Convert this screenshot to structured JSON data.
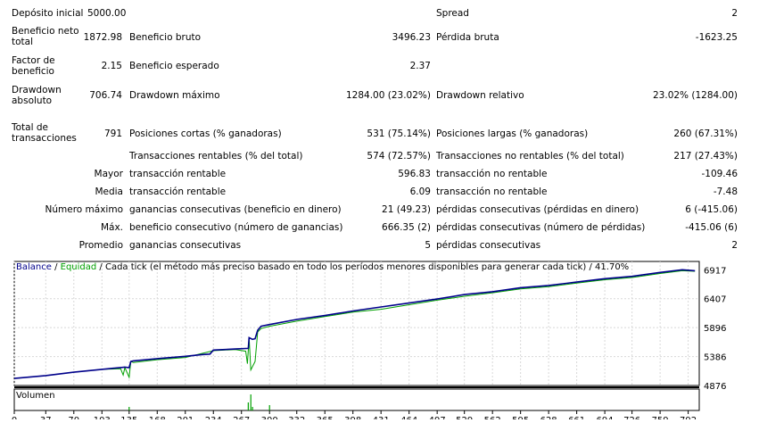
{
  "summary": {
    "initial_deposit": {
      "label": "Depósito inicial",
      "value": "5000.00"
    },
    "spread": {
      "label": "Spread",
      "value": "2"
    },
    "net_profit": {
      "label": "Beneficio neto total",
      "value": "1872.98"
    },
    "gross_profit": {
      "label": "Beneficio bruto",
      "value": "3496.23"
    },
    "gross_loss": {
      "label": "Pérdida bruta",
      "value": "-1623.25"
    },
    "profit_factor": {
      "label": "Factor de beneficio",
      "value": "2.15"
    },
    "expected_payoff": {
      "label": "Beneficio esperado",
      "value": "2.37"
    },
    "dd_abs": {
      "label": "Drawdown absoluto",
      "value": "706.74"
    },
    "dd_max": {
      "label": "Drawdown máximo",
      "value": "1284.00 (23.02%)"
    },
    "dd_rel": {
      "label": "Drawdown relativo",
      "value": "23.02% (1284.00)"
    },
    "total_trades": {
      "label": "Total de transacciones",
      "value": "791"
    },
    "short_pos": {
      "label": "Posiciones cortas (% ganadoras)",
      "value": "531 (75.14%)"
    },
    "long_pos": {
      "label": "Posiciones largas (% ganadoras)",
      "value": "260 (67.31%)"
    },
    "profit_trades": {
      "label": "Transacciones rentables (% del total)",
      "value": "574 (72.57%)"
    },
    "loss_trades": {
      "label": "Transacciones no rentables (% del total)",
      "value": "217 (27.43%)"
    }
  },
  "details": [
    {
      "prefix": "Mayor",
      "left_label": "transacción rentable",
      "left_value": "596.83",
      "right_label": "transacción no rentable",
      "right_value": "-109.46"
    },
    {
      "prefix": "Media",
      "left_label": "transacción rentable",
      "left_value": "6.09",
      "right_label": "transacción no rentable",
      "right_value": "-7.48"
    },
    {
      "prefix": "Número máximo",
      "left_label": "ganancias consecutivas (beneficio en dinero)",
      "left_value": "21 (49.23)",
      "right_label": "pérdidas consecutivas (pérdidas en dinero)",
      "right_value": "6 (-415.06)"
    },
    {
      "prefix": "Máx.",
      "left_label": "beneficio consecutivo (número de ganancias)",
      "left_value": "666.35 (2)",
      "right_label": "pérdidas consecutivas (número de pérdidas)",
      "right_value": "-415.06 (6)"
    },
    {
      "prefix": "Promedio",
      "left_label": "ganancias consecutivas",
      "left_value": "5",
      "right_label": "pérdidas consecutivas",
      "right_value": "2"
    }
  ],
  "chart_data": {
    "type": "line",
    "legend": {
      "balance": "Balance",
      "separator": " / ",
      "equity": "Equidad",
      "rest": " / Cada tick (el método más preciso basado en todo los períodos menores disponibles para generar cada tick)  / 41.70%"
    },
    "volume_label": "Volumen",
    "colors": {
      "balance": "#00008B",
      "equity": "#00A000",
      "volume": "#00A000",
      "grid": "#d8d8d8"
    },
    "ylim": [
      4876,
      7000
    ],
    "y_ticks": [
      "6917",
      "6407",
      "5896",
      "5386",
      "4876"
    ],
    "y_tick_values": [
      6917,
      6407,
      5896,
      5386,
      4876
    ],
    "x_ticks": [
      "0",
      "37",
      "70",
      "103",
      "135",
      "168",
      "201",
      "234",
      "267",
      "300",
      "332",
      "365",
      "398",
      "431",
      "464",
      "497",
      "529",
      "562",
      "595",
      "628",
      "661",
      "694",
      "726",
      "759",
      "792"
    ],
    "xlim": [
      0,
      805
    ],
    "series": [
      {
        "name": "Balance",
        "x": [
          0,
          37,
          70,
          103,
          130,
          135,
          137,
          140,
          168,
          201,
          220,
          230,
          234,
          260,
          275,
          276,
          280,
          283,
          286,
          290,
          300,
          332,
          365,
          398,
          431,
          464,
          497,
          529,
          562,
          595,
          628,
          661,
          694,
          726,
          759,
          785,
          800
        ],
        "values": [
          5000,
          5050,
          5110,
          5160,
          5200,
          5190,
          5300,
          5310,
          5350,
          5390,
          5420,
          5430,
          5500,
          5520,
          5530,
          5720,
          5690,
          5700,
          5850,
          5920,
          5950,
          6040,
          6110,
          6190,
          6260,
          6330,
          6400,
          6480,
          6530,
          6600,
          6640,
          6700,
          6760,
          6800,
          6870,
          6917,
          6900
        ]
      },
      {
        "name": "Equidad",
        "x": [
          0,
          37,
          70,
          103,
          125,
          128,
          130,
          135,
          137,
          140,
          168,
          201,
          234,
          260,
          272,
          274,
          276,
          278,
          283,
          286,
          290,
          300,
          332,
          365,
          398,
          431,
          464,
          497,
          529,
          562,
          595,
          628,
          661,
          694,
          726,
          759,
          785,
          800
        ],
        "values": [
          5000,
          5050,
          5110,
          5160,
          5170,
          5060,
          5190,
          5020,
          5300,
          5280,
          5330,
          5370,
          5490,
          5510,
          5480,
          5260,
          5720,
          5150,
          5300,
          5820,
          5880,
          5920,
          6010,
          6090,
          6170,
          6220,
          6300,
          6380,
          6450,
          6510,
          6580,
          6620,
          6680,
          6740,
          6780,
          6850,
          6900,
          6890
        ]
      }
    ],
    "volume": {
      "x": [
        135,
        275,
        278,
        280,
        300
      ],
      "values": [
        0.2,
        0.45,
        0.9,
        0.2,
        0.3
      ]
    }
  }
}
